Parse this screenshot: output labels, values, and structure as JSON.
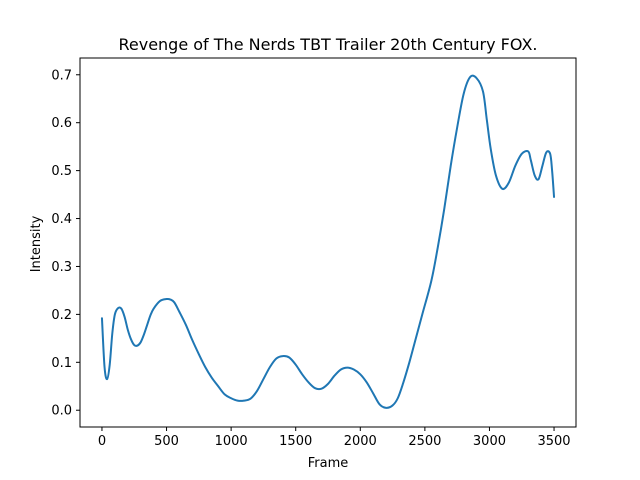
{
  "chart_data": {
    "type": "line",
    "title": "Revenge of The Nerds  TBT Trailer  20th Century FOX.",
    "xlabel": "Frame",
    "ylabel": "Intensity",
    "xlim": [
      -170,
      3670
    ],
    "ylim": [
      -0.035,
      0.735
    ],
    "xticks": [
      0,
      500,
      1000,
      1500,
      2000,
      2500,
      3000,
      3500
    ],
    "yticks": [
      0.0,
      0.1,
      0.2,
      0.3,
      0.4,
      0.5,
      0.6,
      0.7
    ],
    "xtick_labels": [
      "0",
      "500",
      "1000",
      "1500",
      "2000",
      "2500",
      "3000",
      "3500"
    ],
    "ytick_labels": [
      "0.0",
      "0.1",
      "0.2",
      "0.3",
      "0.4",
      "0.5",
      "0.6",
      "0.7"
    ],
    "grid": false,
    "series": [
      {
        "color": "#1f77b4",
        "x": [
          0,
          20,
          40,
          60,
          80,
          100,
          125,
          150,
          175,
          200,
          225,
          250,
          275,
          300,
          325,
          350,
          375,
          400,
          450,
          500,
          530,
          560,
          600,
          650,
          700,
          750,
          800,
          850,
          900,
          950,
          1000,
          1050,
          1100,
          1150,
          1200,
          1250,
          1300,
          1350,
          1400,
          1450,
          1500,
          1550,
          1600,
          1650,
          1700,
          1750,
          1800,
          1850,
          1900,
          1950,
          2000,
          2050,
          2100,
          2150,
          2200,
          2250,
          2290,
          2330,
          2380,
          2430,
          2480,
          2550,
          2600,
          2650,
          2700,
          2750,
          2800,
          2850,
          2900,
          2950,
          2980,
          3010,
          3050,
          3100,
          3150,
          3200,
          3250,
          3300,
          3320,
          3350,
          3380,
          3410,
          3440,
          3470,
          3485,
          3500
        ],
        "y": [
          0.192,
          0.09,
          0.065,
          0.095,
          0.16,
          0.2,
          0.213,
          0.212,
          0.195,
          0.168,
          0.148,
          0.136,
          0.135,
          0.142,
          0.158,
          0.178,
          0.198,
          0.212,
          0.228,
          0.232,
          0.231,
          0.225,
          0.205,
          0.178,
          0.146,
          0.117,
          0.09,
          0.068,
          0.05,
          0.033,
          0.025,
          0.02,
          0.02,
          0.024,
          0.04,
          0.065,
          0.09,
          0.108,
          0.113,
          0.11,
          0.095,
          0.075,
          0.058,
          0.046,
          0.045,
          0.055,
          0.072,
          0.085,
          0.089,
          0.085,
          0.075,
          0.058,
          0.035,
          0.012,
          0.005,
          0.01,
          0.025,
          0.055,
          0.1,
          0.15,
          0.2,
          0.27,
          0.34,
          0.42,
          0.51,
          0.59,
          0.66,
          0.695,
          0.693,
          0.665,
          0.605,
          0.545,
          0.49,
          0.462,
          0.475,
          0.51,
          0.535,
          0.54,
          0.522,
          0.49,
          0.482,
          0.51,
          0.538,
          0.535,
          0.5,
          0.445
        ]
      }
    ]
  }
}
